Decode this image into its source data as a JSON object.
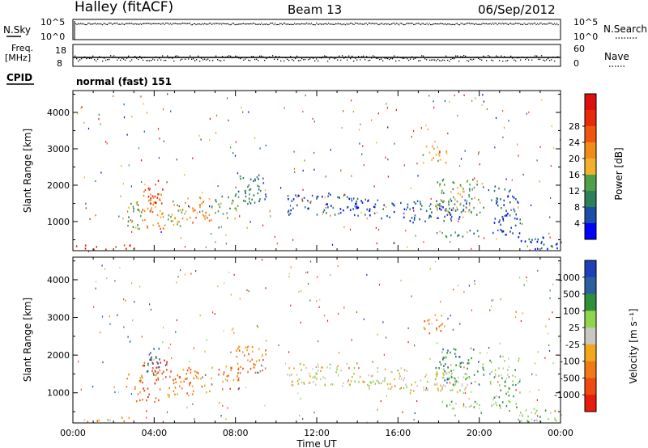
{
  "header": {
    "station": "Halley (fitACF)",
    "beam": "Beam 13",
    "date": "06/Sep/2012"
  },
  "meta_panels": {
    "nsky_label": "N.Sky",
    "nsky_ticks": [
      "10^5",
      "10^0"
    ],
    "nsearch_label": "N.Search",
    "nsearch_ticks": [
      "10^5",
      "10^0"
    ],
    "freq_label": "Freq.",
    "freq_unit": "[MHz]",
    "freq_ticks": [
      "18",
      "8"
    ],
    "nave_label": "Nave",
    "nave_ticks": [
      "60",
      "0"
    ],
    "cpid_label": "CPID",
    "cpid_value": "normal (fast) 151"
  },
  "colors": {
    "power_scale": [
      "#0000ff",
      "#1a4fa8",
      "#2e7f5a",
      "#4fa048",
      "#f3b12a",
      "#f08c1a",
      "#f0560e",
      "#e62a0a",
      "#dd1010"
    ],
    "velocity_scale": [
      "#e81c0c",
      "#ee4a12",
      "#f07a18",
      "#f0a81c",
      "#c8c8c0",
      "#8ed64a",
      "#2f8f3a",
      "#2d5f9e",
      "#1f3fb8"
    ]
  },
  "chart_data": [
    {
      "type": "heatmap",
      "title": "",
      "xlabel": "",
      "ylabel": "Slant Range [km]",
      "x_ticks": [
        "00:00",
        "04:00",
        "08:00",
        "12:00",
        "16:00",
        "20:00",
        "00:00"
      ],
      "y_ticks": [
        1000,
        2000,
        3000,
        4000
      ],
      "ylim": [
        200,
        4600
      ],
      "colorbar": {
        "label": "Power [dB]",
        "ticks": [
          4,
          8,
          12,
          16,
          20,
          24,
          28
        ]
      },
      "echo_regions": [
        {
          "t": [
            0.0,
            3.0
          ],
          "range": [
            250,
            380
          ],
          "level": 7
        },
        {
          "t": [
            2.6,
            3.4
          ],
          "range": [
            800,
            1600
          ],
          "level": 3
        },
        {
          "t": [
            3.4,
            4.6
          ],
          "range": [
            800,
            1900
          ],
          "level": 5
        },
        {
          "t": [
            3.6,
            4.4
          ],
          "range": [
            1500,
            2200
          ],
          "level": 7
        },
        {
          "t": [
            4.6,
            5.4
          ],
          "range": [
            900,
            1600
          ],
          "level": 4
        },
        {
          "t": [
            5.4,
            6.8
          ],
          "range": [
            900,
            1700
          ],
          "level": 5
        },
        {
          "t": [
            6.8,
            8.2
          ],
          "range": [
            1100,
            1800
          ],
          "level": 3
        },
        {
          "t": [
            8.0,
            9.5
          ],
          "range": [
            1500,
            2300
          ],
          "level": 2
        },
        {
          "t": [
            10.5,
            13.5
          ],
          "range": [
            1200,
            1800
          ],
          "level": 1
        },
        {
          "t": [
            13.5,
            16.5
          ],
          "range": [
            1100,
            1700
          ],
          "level": 1
        },
        {
          "t": [
            16.5,
            19.5
          ],
          "range": [
            1000,
            1600
          ],
          "level": 1
        },
        {
          "t": [
            17.2,
            18.4
          ],
          "range": [
            2600,
            3100
          ],
          "level": 4
        },
        {
          "t": [
            17.8,
            20.2
          ],
          "range": [
            1200,
            2200
          ],
          "level": 3
        },
        {
          "t": [
            18.0,
            20.0
          ],
          "range": [
            600,
            800
          ],
          "level": 2
        },
        {
          "t": [
            20.5,
            22.0
          ],
          "range": [
            600,
            2000
          ],
          "level": 1
        },
        {
          "t": [
            22.0,
            24.0
          ],
          "range": [
            250,
            600
          ],
          "level": 1
        }
      ]
    },
    {
      "type": "heatmap",
      "title": "",
      "xlabel": "Time UT",
      "ylabel": "Slant Range [km]",
      "x_ticks": [
        "00:00",
        "04:00",
        "08:00",
        "12:00",
        "16:00",
        "20:00",
        "00:00"
      ],
      "y_ticks": [
        1000,
        2000,
        3000,
        4000
      ],
      "ylim": [
        200,
        4600
      ],
      "colorbar": {
        "label": "Velocity [m s⁻¹]",
        "ticks": [
          "1000",
          "500",
          "100",
          "25",
          "-25",
          "-100",
          "-500",
          "-1000"
        ]
      },
      "echo_regions": [
        {
          "t": [
            0.0,
            3.0
          ],
          "range": [
            250,
            380
          ],
          "level": 3
        },
        {
          "t": [
            2.6,
            3.4
          ],
          "range": [
            800,
            1600
          ],
          "level": 2
        },
        {
          "t": [
            3.4,
            4.6
          ],
          "range": [
            800,
            1900
          ],
          "level": 1
        },
        {
          "t": [
            3.6,
            4.4
          ],
          "range": [
            1500,
            2200
          ],
          "level": 7
        },
        {
          "t": [
            4.6,
            5.4
          ],
          "range": [
            900,
            1600
          ],
          "level": 2
        },
        {
          "t": [
            5.4,
            6.8
          ],
          "range": [
            900,
            1700
          ],
          "level": 2
        },
        {
          "t": [
            6.8,
            8.2
          ],
          "range": [
            1100,
            1800
          ],
          "level": 2
        },
        {
          "t": [
            8.0,
            9.5
          ],
          "range": [
            1500,
            2300
          ],
          "level": 2
        },
        {
          "t": [
            10.5,
            13.5
          ],
          "range": [
            1200,
            1800
          ],
          "level": 4
        },
        {
          "t": [
            13.5,
            16.5
          ],
          "range": [
            1100,
            1700
          ],
          "level": 4
        },
        {
          "t": [
            16.5,
            19.5
          ],
          "range": [
            1000,
            1600
          ],
          "level": 4
        },
        {
          "t": [
            17.2,
            18.4
          ],
          "range": [
            2600,
            3100
          ],
          "level": 2
        },
        {
          "t": [
            17.8,
            20.2
          ],
          "range": [
            1200,
            2200
          ],
          "level": 6
        },
        {
          "t": [
            18.0,
            20.0
          ],
          "range": [
            600,
            800
          ],
          "level": 5
        },
        {
          "t": [
            20.5,
            22.0
          ],
          "range": [
            600,
            2000
          ],
          "level": 5
        },
        {
          "t": [
            22.0,
            24.0
          ],
          "range": [
            250,
            600
          ],
          "level": 5
        }
      ]
    }
  ]
}
